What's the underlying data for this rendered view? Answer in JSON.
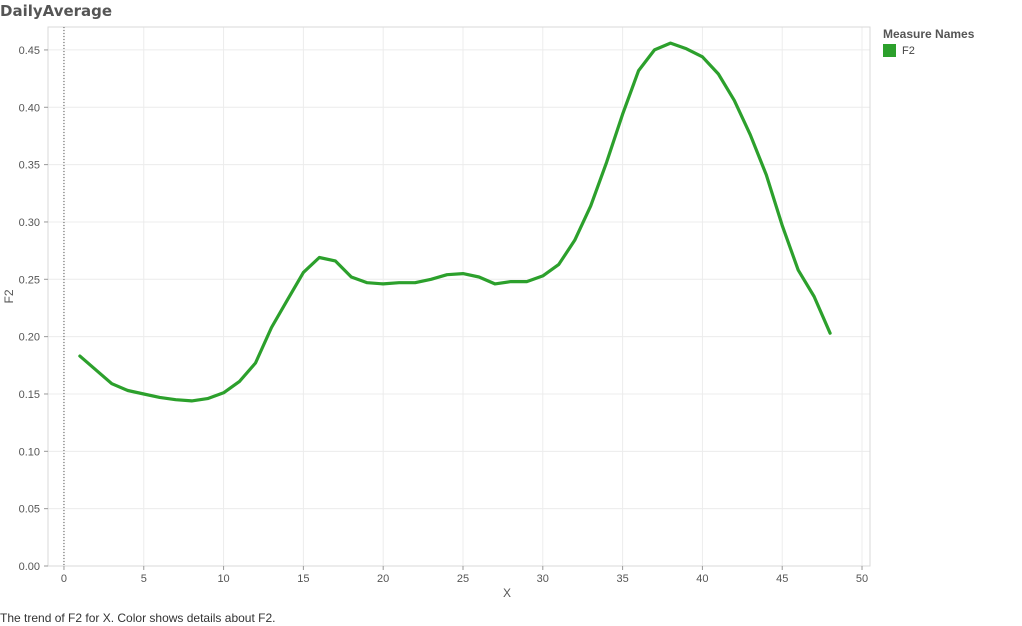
{
  "title": "DailyAverage",
  "caption": "The trend of F2 for X.  Color shows details about F2.",
  "legend": {
    "title": "Measure Names",
    "items": [
      {
        "label": "F2",
        "color": "#2ca02c"
      }
    ]
  },
  "chart_data": {
    "type": "line",
    "xlabel": "X",
    "ylabel": "F2",
    "xlim": [
      -1,
      50.5
    ],
    "ylim": [
      0,
      0.47
    ],
    "xticks": [
      0,
      5,
      10,
      15,
      20,
      25,
      30,
      35,
      40,
      45,
      50
    ],
    "yticks": [
      0.0,
      0.05,
      0.1,
      0.15,
      0.2,
      0.25,
      0.3,
      0.35,
      0.4,
      0.45
    ],
    "ytick_labels": [
      "0.00",
      "0.05",
      "0.10",
      "0.15",
      "0.20",
      "0.25",
      "0.30",
      "0.35",
      "0.40",
      "0.45"
    ],
    "grid": true,
    "legend_position": "top-right",
    "series": [
      {
        "name": "F2",
        "color": "#2ca02c",
        "x": [
          1,
          2,
          3,
          4,
          5,
          6,
          7,
          8,
          9,
          10,
          11,
          12,
          13,
          14,
          15,
          16,
          17,
          18,
          19,
          20,
          21,
          22,
          23,
          24,
          25,
          26,
          27,
          28,
          29,
          30,
          31,
          32,
          33,
          34,
          35,
          36,
          37,
          38,
          39,
          40,
          41,
          42,
          43,
          44,
          45,
          46,
          47,
          48
        ],
        "y": [
          0.183,
          0.171,
          0.159,
          0.153,
          0.15,
          0.147,
          0.145,
          0.144,
          0.146,
          0.151,
          0.161,
          0.177,
          0.208,
          0.232,
          0.256,
          0.269,
          0.266,
          0.252,
          0.247,
          0.246,
          0.247,
          0.247,
          0.25,
          0.254,
          0.255,
          0.252,
          0.246,
          0.248,
          0.248,
          0.253,
          0.263,
          0.284,
          0.314,
          0.352,
          0.394,
          0.432,
          0.45,
          0.456,
          0.451,
          0.444,
          0.429,
          0.406,
          0.376,
          0.341,
          0.297,
          0.258,
          0.235,
          0.203
        ]
      }
    ]
  }
}
